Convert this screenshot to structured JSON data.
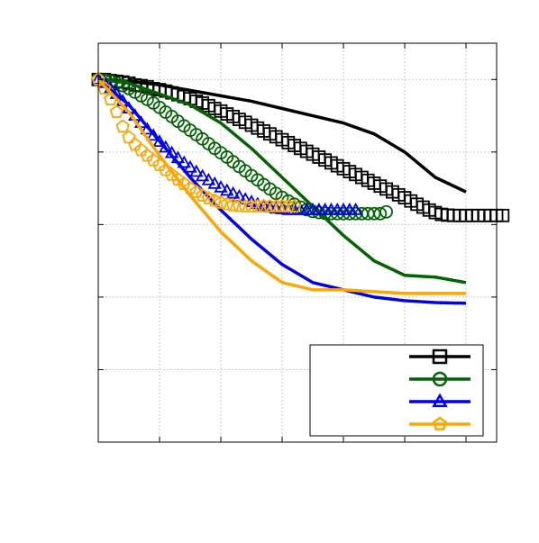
{
  "chart_data": {
    "type": "line",
    "title": "",
    "xlabel": "",
    "ylabel": "",
    "xlim": [
      0,
      6.5
    ],
    "ylim": [
      0,
      1.1
    ],
    "grid": true,
    "legend": {
      "placement": "bottom-right",
      "entries": [
        "",
        "",
        "",
        ""
      ]
    },
    "series": [
      {
        "color": "#000000",
        "marker": "square",
        "solid": {
          "x": [
            0,
            0.5,
            1.0,
            1.5,
            2.0,
            2.5,
            3.0,
            3.5,
            4.0,
            4.5,
            5.0,
            5.5,
            6.0
          ],
          "y": [
            1.0,
            0.995,
            0.985,
            0.97,
            0.955,
            0.94,
            0.92,
            0.9,
            0.88,
            0.85,
            0.8,
            0.73,
            0.69
          ]
        },
        "marked": {
          "x": [
            0,
            0.1,
            0.2,
            0.3,
            0.4,
            0.5,
            0.6,
            0.7,
            0.8,
            0.9,
            1.0,
            1.1,
            1.2,
            1.3,
            1.4,
            1.5,
            1.6,
            1.7,
            1.8,
            1.9,
            2.0,
            2.1,
            2.2,
            2.3,
            2.4,
            2.5,
            2.6,
            2.7,
            2.8,
            2.9,
            3.0,
            3.1,
            3.2,
            3.3,
            3.4,
            3.5,
            3.6,
            3.7,
            3.8,
            3.9,
            4.0,
            4.1,
            4.2,
            4.3,
            4.4,
            4.5,
            4.6,
            4.7,
            4.8,
            4.9,
            5.0,
            5.1,
            5.2,
            5.3,
            5.4,
            5.5,
            5.6,
            5.7,
            5.8,
            5.9,
            6.0,
            6.1,
            6.2,
            6.3,
            6.4,
            6.5,
            6.6
          ],
          "y": [
            1.0,
            1.0,
            0.997,
            0.995,
            0.993,
            0.99,
            0.985,
            0.983,
            0.98,
            0.975,
            0.972,
            0.968,
            0.963,
            0.958,
            0.953,
            0.947,
            0.94,
            0.935,
            0.928,
            0.92,
            0.913,
            0.905,
            0.898,
            0.89,
            0.882,
            0.874,
            0.866,
            0.858,
            0.85,
            0.842,
            0.834,
            0.826,
            0.818,
            0.81,
            0.802,
            0.794,
            0.786,
            0.778,
            0.77,
            0.762,
            0.754,
            0.746,
            0.738,
            0.73,
            0.722,
            0.714,
            0.706,
            0.698,
            0.69,
            0.682,
            0.674,
            0.665,
            0.656,
            0.648,
            0.64,
            0.633,
            0.628,
            0.626,
            0.625,
            0.625,
            0.625,
            0.625,
            0.625,
            0.625,
            0.625,
            0.625,
            0.625
          ]
        }
      },
      {
        "color": "#006400",
        "marker": "circle",
        "solid": {
          "x": [
            0,
            0.5,
            1.0,
            1.5,
            2.0,
            2.5,
            3.0,
            3.5,
            4.0,
            4.5,
            5.0,
            5.5,
            6.0
          ],
          "y": [
            1.0,
            0.99,
            0.96,
            0.93,
            0.88,
            0.81,
            0.73,
            0.65,
            0.57,
            0.5,
            0.46,
            0.455,
            0.44
          ]
        },
        "marked": {
          "x": [
            0,
            0.1,
            0.2,
            0.3,
            0.4,
            0.5,
            0.6,
            0.7,
            0.8,
            0.9,
            1.0,
            1.1,
            1.2,
            1.3,
            1.4,
            1.5,
            1.6,
            1.7,
            1.8,
            1.9,
            2.0,
            2.1,
            2.2,
            2.3,
            2.4,
            2.5,
            2.6,
            2.7,
            2.8,
            2.9,
            3.0,
            3.1,
            3.2,
            3.3,
            3.4,
            3.5,
            3.6,
            3.7,
            3.8,
            3.9,
            4.0,
            4.1,
            4.2,
            4.3,
            4.4,
            4.5,
            4.6,
            4.7
          ],
          "y": [
            1.0,
            0.998,
            0.995,
            0.99,
            0.983,
            0.975,
            0.965,
            0.955,
            0.945,
            0.935,
            0.923,
            0.91,
            0.898,
            0.885,
            0.872,
            0.86,
            0.848,
            0.836,
            0.823,
            0.81,
            0.798,
            0.786,
            0.773,
            0.76,
            0.748,
            0.735,
            0.723,
            0.71,
            0.698,
            0.686,
            0.675,
            0.665,
            0.656,
            0.648,
            0.641,
            0.636,
            0.633,
            0.631,
            0.63,
            0.63,
            0.63,
            0.63,
            0.63,
            0.63,
            0.63,
            0.63,
            0.63,
            0.635
          ]
        }
      },
      {
        "color": "#0000ee",
        "marker": "triangle",
        "solid": {
          "x": [
            0,
            0.5,
            1.0,
            1.5,
            2.0,
            2.5,
            3.0,
            3.5,
            4.0,
            4.5,
            5.0,
            5.5,
            6.0
          ],
          "y": [
            1.0,
            0.93,
            0.83,
            0.73,
            0.64,
            0.56,
            0.49,
            0.44,
            0.42,
            0.4,
            0.39,
            0.385,
            0.383
          ]
        },
        "marked": {
          "x": [
            0,
            0.1,
            0.2,
            0.3,
            0.4,
            0.5,
            0.6,
            0.7,
            0.8,
            0.9,
            1.0,
            1.1,
            1.2,
            1.3,
            1.4,
            1.5,
            1.6,
            1.7,
            1.8,
            1.9,
            2.0,
            2.1,
            2.2,
            2.3,
            2.4,
            2.5,
            2.6,
            2.7,
            2.8,
            2.9,
            3.0,
            3.1,
            3.2,
            3.3,
            3.4,
            3.5,
            3.6,
            3.7,
            3.8,
            3.9,
            4.0,
            4.1,
            4.2
          ],
          "y": [
            1.0,
            0.99,
            0.975,
            0.96,
            0.94,
            0.92,
            0.9,
            0.88,
            0.862,
            0.845,
            0.828,
            0.812,
            0.797,
            0.783,
            0.77,
            0.757,
            0.745,
            0.733,
            0.722,
            0.712,
            0.702,
            0.693,
            0.685,
            0.677,
            0.669,
            0.662,
            0.656,
            0.651,
            0.647,
            0.644,
            0.642,
            0.64,
            0.64,
            0.64,
            0.64,
            0.64,
            0.64,
            0.64,
            0.64,
            0.64,
            0.64,
            0.64,
            0.64
          ]
        }
      },
      {
        "color": "#ffa500",
        "marker": "pentagon",
        "solid": {
          "x": [
            0,
            0.5,
            1.0,
            1.5,
            2.0,
            2.5,
            3.0,
            3.5,
            4.0,
            4.5,
            5.0,
            5.5,
            6.0
          ],
          "y": [
            1.0,
            0.91,
            0.79,
            0.68,
            0.58,
            0.5,
            0.44,
            0.42,
            0.42,
            0.415,
            0.41,
            0.41,
            0.41
          ]
        },
        "marked": {
          "x": [
            0,
            0.1,
            0.2,
            0.3,
            0.4,
            0.5,
            0.6,
            0.7,
            0.8,
            0.9,
            1.0,
            1.1,
            1.2,
            1.3,
            1.4,
            1.5,
            1.6,
            1.7,
            1.8,
            1.9,
            2.0,
            2.1,
            2.2,
            2.3,
            2.4,
            2.5,
            2.6,
            2.7,
            2.8,
            2.9,
            3.0,
            3.1,
            3.2
          ],
          "y": [
            1.0,
            0.975,
            0.945,
            0.91,
            0.87,
            0.84,
            0.82,
            0.805,
            0.79,
            0.777,
            0.764,
            0.75,
            0.737,
            0.724,
            0.712,
            0.7,
            0.69,
            0.68,
            0.672,
            0.666,
            0.66,
            0.656,
            0.653,
            0.651,
            0.65,
            0.65,
            0.65,
            0.65,
            0.65,
            0.65,
            0.65,
            0.65,
            0.65
          ]
        }
      }
    ]
  }
}
